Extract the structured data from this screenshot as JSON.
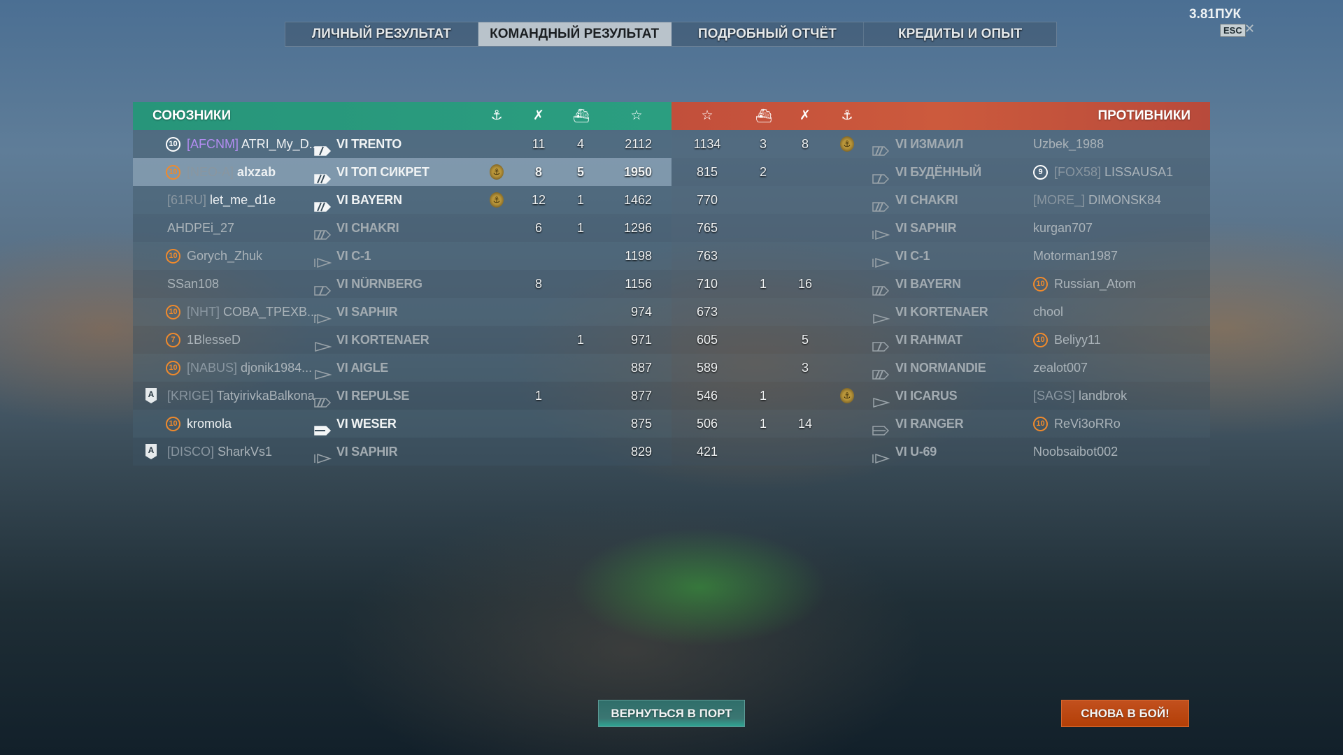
{
  "tabs": [
    {
      "label": "ЛИЧНЫЙ РЕЗУЛЬТАТ",
      "active": false
    },
    {
      "label": "КОМАНДНЫЙ РЕЗУЛЬТАТ",
      "active": true
    },
    {
      "label": "ПОДРОБНЫЙ ОТЧЁТ",
      "active": false
    },
    {
      "label": "КРЕДИТЫ И ОПЫТ",
      "active": false
    }
  ],
  "top_right": {
    "indicator": "3.81ПУК",
    "esc_label": "ESC",
    "close_icon": "close-icon"
  },
  "colors": {
    "allies": "#2b9e80",
    "enemies": "#c8553d",
    "accent_orange": "#f08a2c",
    "clan_purple": "#b28cf0",
    "again_button": "#b84409",
    "back_button": "#3b7672"
  },
  "allies": {
    "title": "СОЮЗНИКИ",
    "column_icons": [
      "crest-icon",
      "kills-icon",
      "sunk-ship-icon",
      "star-icon"
    ],
    "rows": [
      {
        "badge": "10",
        "badge_color": "white",
        "clan": "[AFCNM]",
        "clan_color": "purple",
        "name": "ATRI_My_D...",
        "ship_class": "cruiser",
        "tier": "VI",
        "ship": "TRENTO",
        "crest": false,
        "kills": "11",
        "ships": "4",
        "xp": "2112",
        "alive": true
      },
      {
        "badge": "10",
        "badge_color": "orange",
        "clan": "[NEO-A]",
        "name": "alxzab",
        "ship_class": "battleship",
        "tier": "VI",
        "ship": "ТОП СИКРЕТ",
        "crest": true,
        "kills": "8",
        "ships": "5",
        "xp": "1950",
        "alive": true,
        "current_player": true
      },
      {
        "badge": "",
        "clan": "[61RU]",
        "name": "let_me_d1e",
        "ship_class": "battleship",
        "tier": "VI",
        "ship": "BAYERN",
        "crest": true,
        "kills": "12",
        "ships": "1",
        "xp": "1462",
        "alive": true
      },
      {
        "badge": "",
        "clan": "",
        "name": "AHDPEi_27",
        "ship_class": "battleship",
        "tier": "VI",
        "ship": "CHAKRI",
        "crest": false,
        "kills": "6",
        "ships": "1",
        "xp": "1296",
        "alive": false
      },
      {
        "badge": "10",
        "badge_color": "orange",
        "clan": "",
        "name": "Gorych_Zhuk",
        "ship_class": "submarine",
        "tier": "VI",
        "ship": "C-1",
        "crest": false,
        "kills": "",
        "ships": "",
        "xp": "1198",
        "alive": false
      },
      {
        "badge": "",
        "clan": "",
        "name": "SSan108",
        "ship_class": "cruiser",
        "tier": "VI",
        "ship": "NÜRNBERG",
        "crest": false,
        "kills": "8",
        "ships": "",
        "xp": "1156",
        "alive": false
      },
      {
        "badge": "10",
        "badge_color": "orange",
        "clan": "[NHT]",
        "name": "COBA_TPEXB...",
        "ship_class": "submarine",
        "tier": "VI",
        "ship": "SAPHIR",
        "crest": false,
        "kills": "",
        "ships": "",
        "xp": "974",
        "alive": false
      },
      {
        "badge": "7",
        "badge_color": "orange",
        "clan": "",
        "name": "1BlesseD",
        "ship_class": "destroyer",
        "tier": "VI",
        "ship": "KORTENAER",
        "crest": false,
        "kills": "",
        "ships": "1",
        "xp": "971",
        "alive": false
      },
      {
        "badge": "10",
        "badge_color": "orange",
        "clan": "[NABUS]",
        "name": "djonik1984...",
        "ship_class": "destroyer",
        "tier": "VI",
        "ship": "AIGLE",
        "crest": false,
        "kills": "",
        "ships": "",
        "xp": "887",
        "alive": false
      },
      {
        "badge": "A",
        "badge_type": "shield",
        "clan": "[KRIGE]",
        "name": "TatyirivkaBalkona",
        "ship_class": "battleship",
        "tier": "VI",
        "ship": "REPULSE",
        "crest": false,
        "kills": "1",
        "ships": "",
        "xp": "877",
        "alive": false
      },
      {
        "badge": "10",
        "badge_color": "orange",
        "clan": "",
        "name": "kromola",
        "ship_class": "auxiliary",
        "tier": "VI",
        "ship": "WESER",
        "crest": false,
        "kills": "",
        "ships": "",
        "xp": "875",
        "alive": true
      },
      {
        "badge": "A",
        "badge_type": "shield",
        "clan": "[DISCO]",
        "name": "SharkVs1",
        "ship_class": "submarine",
        "tier": "VI",
        "ship": "SAPHIR",
        "crest": false,
        "kills": "",
        "ships": "",
        "xp": "829",
        "alive": false
      }
    ]
  },
  "enemies": {
    "title": "ПРОТИВНИКИ",
    "column_icons": [
      "star-icon",
      "sunk-ship-icon",
      "kills-icon",
      "crest-icon"
    ],
    "rows": [
      {
        "xp": "1134",
        "ships": "3",
        "kills": "8",
        "crest": true,
        "ship_class": "battleship",
        "tier": "VI",
        "ship": "ИЗМАИЛ",
        "badge": "",
        "clan": "",
        "name": "Uzbek_1988"
      },
      {
        "xp": "815",
        "ships": "2",
        "kills": "",
        "crest": false,
        "ship_class": "cruiser",
        "tier": "VI",
        "ship": "БУДЁННЫЙ",
        "badge": "9",
        "badge_color": "white",
        "clan": "[FOX58]",
        "name": "LISSAUSA1"
      },
      {
        "xp": "770",
        "ships": "",
        "kills": "",
        "crest": false,
        "ship_class": "battleship",
        "tier": "VI",
        "ship": "CHAKRI",
        "badge": "",
        "clan": "[MORE_]",
        "name": "DIMONSK84"
      },
      {
        "xp": "765",
        "ships": "",
        "kills": "",
        "crest": false,
        "ship_class": "submarine",
        "tier": "VI",
        "ship": "SAPHIR",
        "badge": "",
        "clan": "",
        "name": "kurgan707"
      },
      {
        "xp": "763",
        "ships": "",
        "kills": "",
        "crest": false,
        "ship_class": "submarine",
        "tier": "VI",
        "ship": "C-1",
        "badge": "",
        "clan": "",
        "name": "Motorman1987"
      },
      {
        "xp": "710",
        "ships": "1",
        "kills": "16",
        "crest": false,
        "ship_class": "battleship",
        "tier": "VI",
        "ship": "BAYERN",
        "badge": "10",
        "badge_color": "orange",
        "clan": "",
        "name": "Russian_Atom"
      },
      {
        "xp": "673",
        "ships": "",
        "kills": "",
        "crest": false,
        "ship_class": "destroyer",
        "tier": "VI",
        "ship": "KORTENAER",
        "badge": "",
        "clan": "",
        "name": "chool"
      },
      {
        "xp": "605",
        "ships": "",
        "kills": "5",
        "crest": false,
        "ship_class": "cruiser",
        "tier": "VI",
        "ship": "RAHMAT",
        "badge": "10",
        "badge_color": "orange",
        "clan": "",
        "name": "Beliyy11"
      },
      {
        "xp": "589",
        "ships": "",
        "kills": "3",
        "crest": false,
        "ship_class": "battleship",
        "tier": "VI",
        "ship": "NORMANDIE",
        "badge": "",
        "clan": "",
        "name": "zealot007"
      },
      {
        "xp": "546",
        "ships": "1",
        "kills": "",
        "crest": true,
        "ship_class": "destroyer",
        "tier": "VI",
        "ship": "ICARUS",
        "badge": "",
        "clan": "[SAGS]",
        "name": "landbrok"
      },
      {
        "xp": "506",
        "ships": "1",
        "kills": "14",
        "crest": false,
        "ship_class": "carrier",
        "tier": "VI",
        "ship": "RANGER",
        "badge": "10",
        "badge_color": "orange",
        "clan": "",
        "name": "ReVi3oRRo"
      },
      {
        "xp": "421",
        "ships": "",
        "kills": "",
        "crest": false,
        "ship_class": "submarine",
        "tier": "VI",
        "ship": "U-69",
        "badge": "",
        "clan": "",
        "name": "Noobsaibot002"
      }
    ]
  },
  "buttons": {
    "back": "ВЕРНУТЬСЯ В ПОРТ",
    "again": "СНОВА В БОЙ!"
  }
}
